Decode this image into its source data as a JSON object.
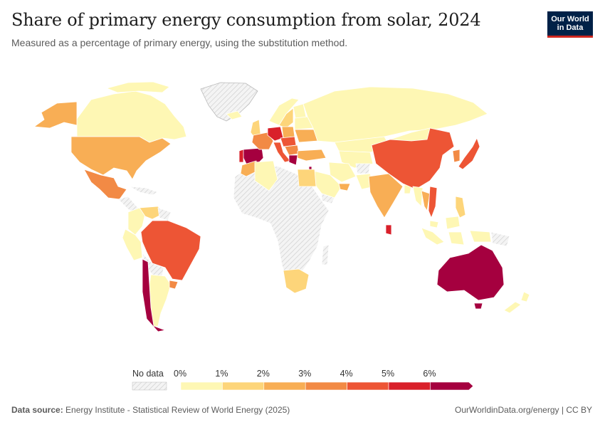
{
  "header": {
    "title": "Share of primary energy consumption from solar, 2024",
    "subtitle": "Measured as a percentage of primary energy, using the substitution method.",
    "logo_line1": "Our World",
    "logo_line2": "in Data"
  },
  "legend": {
    "no_data_label": "No data",
    "ticks": [
      "0%",
      "1%",
      "2%",
      "3%",
      "4%",
      "5%",
      "6%"
    ],
    "bins": [
      {
        "range": "0-1%",
        "color": "#fef7b4"
      },
      {
        "range": "1-2%",
        "color": "#fdd57a"
      },
      {
        "range": "2-3%",
        "color": "#f8ae55"
      },
      {
        "range": "3-4%",
        "color": "#f28a45"
      },
      {
        "range": "4-5%",
        "color": "#ed5535"
      },
      {
        "range": "5-6%",
        "color": "#d9202a"
      },
      {
        "range": ">6%",
        "color": "#a5003f"
      }
    ]
  },
  "footer": {
    "source_label": "Data source:",
    "source_text": "Energy Institute - Statistical Review of World Energy (2025)",
    "right_text": "OurWorldinData.org/energy | CC BY"
  },
  "colors": {
    "no_data": "#e8e8e8",
    "border": "#ffffff",
    "title": "#1d1d1d",
    "logo_bg": "#002147",
    "logo_accent": "#ce261e"
  }
}
